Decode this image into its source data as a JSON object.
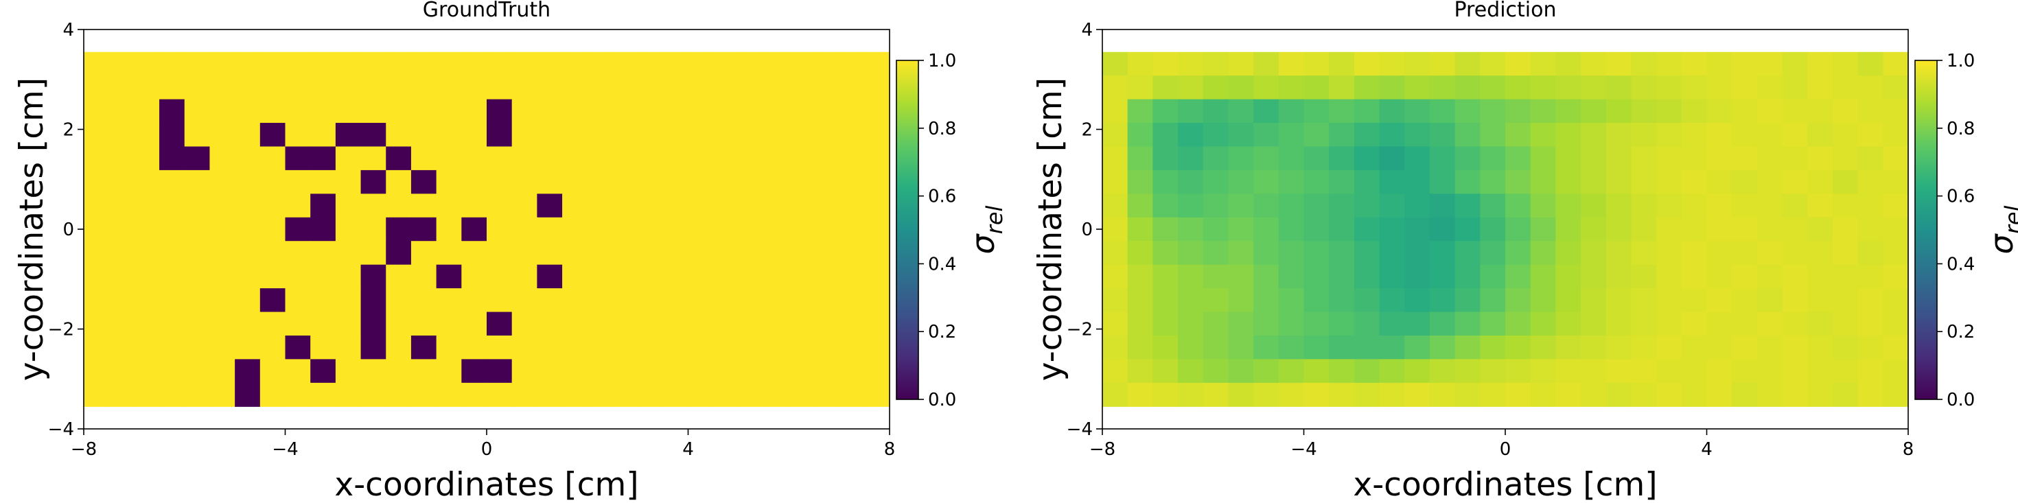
{
  "chart_data": [
    {
      "type": "heatmap",
      "title": "GroundTruth",
      "xlabel": "x-coordinates [cm]",
      "ylabel": "y-coordinates [cm]",
      "xlim": [
        -8,
        8
      ],
      "ylim": [
        -4,
        4
      ],
      "extent": [
        -8,
        8,
        -3.55,
        3.55
      ],
      "grid_shape": [
        15,
        32
      ],
      "xticks": [
        -8,
        -4,
        0,
        4,
        8
      ],
      "yticks": [
        -4,
        -2,
        0,
        2,
        4
      ],
      "xtick_labels": [
        "−8",
        "−4",
        "0",
        "4",
        "8"
      ],
      "ytick_labels": [
        "−4",
        "−2",
        "0",
        "2",
        "4"
      ],
      "colormap": "viridis",
      "colorbar": {
        "label": "σrel",
        "label_main": "σ",
        "label_sub": "rel",
        "range": [
          0,
          1
        ],
        "ticks": [
          "0.0",
          "0.2",
          "0.4",
          "0.6",
          "0.8",
          "1.0"
        ]
      },
      "grid": false,
      "background_value": 1.0,
      "zero_cells": [
        [
          2,
          3
        ],
        [
          2,
          16
        ],
        [
          3,
          3
        ],
        [
          3,
          7
        ],
        [
          3,
          10
        ],
        [
          3,
          11
        ],
        [
          3,
          16
        ],
        [
          4,
          3
        ],
        [
          4,
          4
        ],
        [
          4,
          8
        ],
        [
          4,
          9
        ],
        [
          4,
          12
        ],
        [
          5,
          11
        ],
        [
          5,
          13
        ],
        [
          6,
          9
        ],
        [
          6,
          18
        ],
        [
          7,
          8
        ],
        [
          7,
          9
        ],
        [
          7,
          12
        ],
        [
          7,
          13
        ],
        [
          7,
          15
        ],
        [
          8,
          12
        ],
        [
          9,
          11
        ],
        [
          9,
          14
        ],
        [
          9,
          18
        ],
        [
          10,
          7
        ],
        [
          10,
          11
        ],
        [
          11,
          11
        ],
        [
          11,
          16
        ],
        [
          12,
          8
        ],
        [
          12,
          11
        ],
        [
          12,
          13
        ],
        [
          13,
          6
        ],
        [
          13,
          9
        ],
        [
          13,
          15
        ],
        [
          13,
          16
        ],
        [
          14,
          6
        ]
      ]
    },
    {
      "type": "heatmap",
      "title": "Prediction",
      "xlabel": "x-coordinates [cm]",
      "ylabel": "y-coordinates [cm]",
      "xlim": [
        -8,
        8
      ],
      "ylim": [
        -4,
        4
      ],
      "extent": [
        -8,
        8,
        -3.55,
        3.55
      ],
      "grid_shape": [
        15,
        32
      ],
      "xticks": [
        -8,
        -4,
        0,
        4,
        8
      ],
      "yticks": [
        -4,
        -2,
        0,
        2,
        4
      ],
      "xtick_labels": [
        "−8",
        "−4",
        "0",
        "4",
        "8"
      ],
      "ytick_labels": [
        "−4",
        "−2",
        "0",
        "2",
        "4"
      ],
      "colormap": "viridis",
      "colorbar": {
        "label": "σrel",
        "label_main": "σ",
        "label_sub": "rel",
        "range": [
          0,
          1
        ],
        "ticks": [
          "0.0",
          "0.2",
          "0.4",
          "0.6",
          "0.8",
          "1.0"
        ]
      },
      "grid": false,
      "rows_top_to_bottom": [
        [
          0.92,
          0.95,
          0.96,
          0.95,
          0.94,
          0.95,
          0.92,
          0.96,
          0.95,
          0.93,
          0.96,
          0.95,
          0.94,
          0.95,
          0.92,
          0.94,
          0.96,
          0.94,
          0.93,
          0.95,
          0.96,
          0.94,
          0.95,
          0.96,
          0.95,
          0.96,
          0.96,
          0.94,
          0.96,
          0.95,
          0.93,
          0.96
        ],
        [
          0.95,
          0.94,
          0.9,
          0.91,
          0.88,
          0.87,
          0.89,
          0.88,
          0.87,
          0.9,
          0.86,
          0.85,
          0.87,
          0.86,
          0.85,
          0.86,
          0.88,
          0.89,
          0.9,
          0.91,
          0.9,
          0.92,
          0.93,
          0.94,
          0.95,
          0.96,
          0.95,
          0.94,
          0.96,
          0.95,
          0.95,
          0.94
        ],
        [
          0.95,
          0.78,
          0.72,
          0.7,
          0.68,
          0.7,
          0.66,
          0.7,
          0.72,
          0.74,
          0.72,
          0.68,
          0.7,
          0.72,
          0.76,
          0.78,
          0.8,
          0.82,
          0.84,
          0.86,
          0.88,
          0.9,
          0.91,
          0.93,
          0.94,
          0.95,
          0.96,
          0.95,
          0.95,
          0.96,
          0.95,
          0.95
        ],
        [
          0.94,
          0.76,
          0.68,
          0.64,
          0.66,
          0.68,
          0.7,
          0.72,
          0.74,
          0.7,
          0.66,
          0.64,
          0.66,
          0.68,
          0.74,
          0.78,
          0.82,
          0.86,
          0.88,
          0.9,
          0.92,
          0.93,
          0.94,
          0.95,
          0.96,
          0.95,
          0.95,
          0.96,
          0.94,
          0.95,
          0.96,
          0.95
        ],
        [
          0.95,
          0.78,
          0.68,
          0.66,
          0.7,
          0.72,
          0.74,
          0.72,
          0.7,
          0.66,
          0.62,
          0.58,
          0.62,
          0.66,
          0.7,
          0.74,
          0.78,
          0.84,
          0.88,
          0.9,
          0.92,
          0.94,
          0.95,
          0.95,
          0.96,
          0.96,
          0.95,
          0.95,
          0.96,
          0.95,
          0.94,
          0.96
        ],
        [
          0.95,
          0.8,
          0.72,
          0.7,
          0.72,
          0.74,
          0.76,
          0.74,
          0.72,
          0.7,
          0.66,
          0.62,
          0.62,
          0.66,
          0.72,
          0.76,
          0.8,
          0.84,
          0.88,
          0.9,
          0.92,
          0.94,
          0.95,
          0.96,
          0.95,
          0.94,
          0.95,
          0.96,
          0.95,
          0.93,
          0.95,
          0.95
        ],
        [
          0.94,
          0.82,
          0.74,
          0.72,
          0.74,
          0.76,
          0.74,
          0.72,
          0.7,
          0.68,
          0.66,
          0.64,
          0.62,
          0.6,
          0.64,
          0.7,
          0.76,
          0.82,
          0.86,
          0.88,
          0.91,
          0.93,
          0.94,
          0.95,
          0.96,
          0.95,
          0.95,
          0.94,
          0.96,
          0.95,
          0.95,
          0.96
        ],
        [
          0.95,
          0.86,
          0.8,
          0.78,
          0.76,
          0.78,
          0.76,
          0.72,
          0.7,
          0.68,
          0.64,
          0.62,
          0.6,
          0.58,
          0.62,
          0.68,
          0.74,
          0.8,
          0.86,
          0.89,
          0.91,
          0.93,
          0.95,
          0.95,
          0.96,
          0.96,
          0.95,
          0.95,
          0.94,
          0.96,
          0.95,
          0.95
        ],
        [
          0.94,
          0.88,
          0.82,
          0.8,
          0.78,
          0.8,
          0.76,
          0.74,
          0.72,
          0.7,
          0.66,
          0.62,
          0.6,
          0.62,
          0.66,
          0.7,
          0.76,
          0.82,
          0.87,
          0.9,
          0.92,
          0.94,
          0.95,
          0.96,
          0.95,
          0.95,
          0.96,
          0.95,
          0.95,
          0.96,
          0.94,
          0.95
        ],
        [
          0.95,
          0.9,
          0.86,
          0.84,
          0.82,
          0.82,
          0.78,
          0.74,
          0.72,
          0.7,
          0.66,
          0.62,
          0.6,
          0.62,
          0.66,
          0.72,
          0.78,
          0.84,
          0.88,
          0.9,
          0.92,
          0.93,
          0.95,
          0.96,
          0.95,
          0.96,
          0.95,
          0.96,
          0.95,
          0.95,
          0.95,
          0.96
        ],
        [
          0.94,
          0.9,
          0.86,
          0.84,
          0.84,
          0.82,
          0.78,
          0.76,
          0.72,
          0.7,
          0.68,
          0.64,
          0.62,
          0.64,
          0.68,
          0.74,
          0.8,
          0.84,
          0.88,
          0.91,
          0.93,
          0.94,
          0.95,
          0.95,
          0.96,
          0.95,
          0.94,
          0.96,
          0.95,
          0.95,
          0.96,
          0.95
        ],
        [
          0.95,
          0.9,
          0.86,
          0.84,
          0.82,
          0.8,
          0.78,
          0.76,
          0.74,
          0.72,
          0.7,
          0.66,
          0.66,
          0.7,
          0.74,
          0.78,
          0.82,
          0.86,
          0.89,
          0.91,
          0.93,
          0.94,
          0.95,
          0.96,
          0.95,
          0.95,
          0.96,
          0.95,
          0.94,
          0.95,
          0.96,
          0.95
        ],
        [
          0.94,
          0.9,
          0.88,
          0.84,
          0.82,
          0.8,
          0.76,
          0.74,
          0.72,
          0.7,
          0.7,
          0.7,
          0.74,
          0.78,
          0.82,
          0.86,
          0.88,
          0.9,
          0.92,
          0.93,
          0.94,
          0.95,
          0.96,
          0.95,
          0.95,
          0.96,
          0.95,
          0.96,
          0.95,
          0.94,
          0.95,
          0.96
        ],
        [
          0.95,
          0.92,
          0.9,
          0.86,
          0.84,
          0.82,
          0.84,
          0.86,
          0.88,
          0.86,
          0.84,
          0.86,
          0.88,
          0.9,
          0.91,
          0.92,
          0.93,
          0.94,
          0.95,
          0.95,
          0.96,
          0.96,
          0.95,
          0.95,
          0.96,
          0.95,
          0.95,
          0.96,
          0.95,
          0.95,
          0.96,
          0.95
        ],
        [
          0.94,
          0.96,
          0.95,
          0.94,
          0.95,
          0.93,
          0.94,
          0.95,
          0.96,
          0.95,
          0.94,
          0.95,
          0.96,
          0.95,
          0.94,
          0.95,
          0.96,
          0.95,
          0.96,
          0.95,
          0.94,
          0.95,
          0.96,
          0.95,
          0.96,
          0.94,
          0.95,
          0.96,
          0.95,
          0.94,
          0.96,
          0.95
        ]
      ]
    }
  ]
}
